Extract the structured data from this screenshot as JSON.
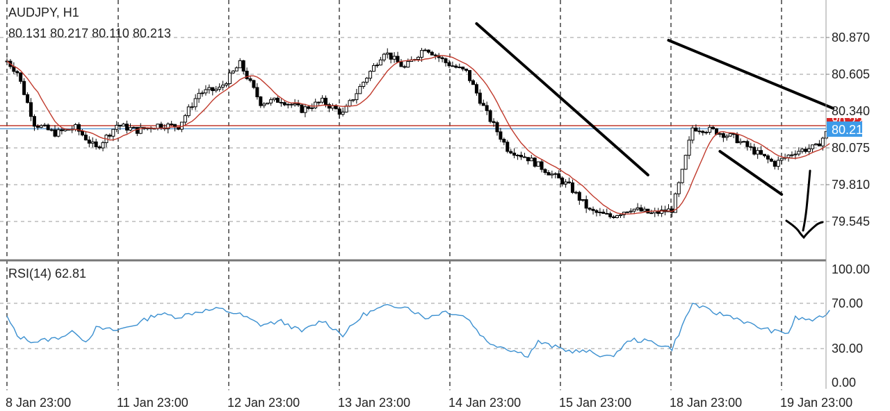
{
  "main_panel": {
    "symbol_label": "AUDJPY, H1",
    "ohlc_label": "80.131 80.217 80.110 80.213",
    "price_ticks": [
      "80.870",
      "80.605",
      "80.340",
      "80.075",
      "79.810",
      "79.545"
    ],
    "current_price_label": "80.213",
    "hidden_tag_label": "80.2??"
  },
  "rsi_panel": {
    "label": "RSI(14) 62.81",
    "ticks": [
      "100.00",
      "70.00",
      "30.00",
      "0.00"
    ]
  },
  "time_axis": {
    "labels": [
      "8 Jan 23:00",
      "11 Jan 23:00",
      "12 Jan 23:00",
      "13 Jan 23:00",
      "14 Jan 23:00",
      "15 Jan 23:00",
      "18 Jan 23:00",
      "19 Jan 23:00"
    ]
  },
  "colors": {
    "candle": "#000000",
    "moving_average": "#c0392b",
    "rsi_line": "#3a8fd0",
    "current_price_line": "#5b9bd5",
    "resistance_line": "#c0392b",
    "price_tag_bg": "#3d9be9",
    "hidden_tag_bg": "#d62728",
    "drawings": "#000000"
  },
  "chart_data": [
    {
      "type": "candlestick",
      "title": "AUDJPY, H1",
      "x_labels": [
        "8 Jan 23:00",
        "11 Jan 23:00",
        "12 Jan 23:00",
        "13 Jan 23:00",
        "14 Jan 23:00",
        "15 Jan 23:00",
        "18 Jan 23:00",
        "19 Jan 23:00"
      ],
      "ylim": [
        79.39,
        81.05
      ],
      "y_ticks": [
        80.87,
        80.605,
        80.34,
        80.075,
        79.81,
        79.545
      ],
      "horizontal_lines": [
        {
          "value": 80.235,
          "color": "#c0392b"
        },
        {
          "value": 80.213,
          "color": "#5b9bd5"
        }
      ],
      "close_path": [
        [
          0,
          80.7
        ],
        [
          3,
          80.62
        ],
        [
          8,
          80.25
        ],
        [
          14,
          80.18
        ],
        [
          20,
          80.22
        ],
        [
          26,
          80.07
        ],
        [
          32,
          80.24
        ],
        [
          38,
          80.2
        ],
        [
          44,
          80.24
        ],
        [
          50,
          80.23
        ],
        [
          56,
          80.47
        ],
        [
          62,
          80.5
        ],
        [
          68,
          80.68
        ],
        [
          74,
          80.4
        ],
        [
          80,
          80.42
        ],
        [
          86,
          80.35
        ],
        [
          92,
          80.41
        ],
        [
          98,
          80.32
        ],
        [
          104,
          80.55
        ],
        [
          110,
          80.77
        ],
        [
          116,
          80.65
        ],
        [
          122,
          80.8
        ],
        [
          128,
          80.69
        ],
        [
          134,
          80.62
        ],
        [
          140,
          80.32
        ],
        [
          146,
          80.07
        ],
        [
          152,
          80.0
        ],
        [
          158,
          79.9
        ],
        [
          164,
          79.8
        ],
        [
          170,
          79.62
        ],
        [
          176,
          79.58
        ],
        [
          182,
          79.64
        ],
        [
          188,
          79.6
        ],
        [
          194,
          79.63
        ],
        [
          197,
          79.9
        ],
        [
          200,
          80.22
        ],
        [
          206,
          80.2
        ],
        [
          212,
          80.15
        ],
        [
          218,
          80.05
        ],
        [
          224,
          79.96
        ],
        [
          230,
          80.05
        ],
        [
          236,
          80.08
        ],
        [
          240,
          80.213
        ]
      ],
      "moving_average": {
        "type": "line",
        "color": "#c0392b"
      },
      "annotations": [
        {
          "type": "trendline",
          "from": [
            137,
            80.97
          ],
          "to": [
            187,
            79.88
          ]
        },
        {
          "type": "trendline",
          "from": [
            193,
            80.85
          ],
          "to": [
            241,
            80.36
          ]
        },
        {
          "type": "trendline",
          "from": [
            208,
            80.05
          ],
          "to": [
            226,
            79.74
          ]
        },
        {
          "type": "freehand",
          "description": "hand-drawn check mark"
        }
      ]
    },
    {
      "type": "line",
      "title": "RSI(14) 62.81",
      "ylim": [
        0,
        100
      ],
      "y_ticks": [
        100,
        70,
        30,
        0
      ],
      "reference_lines": [
        70,
        30
      ],
      "series": [
        {
          "name": "RSI(14)",
          "points": [
            [
              0,
              58
            ],
            [
              3,
              41
            ],
            [
              8,
              36
            ],
            [
              14,
              39
            ],
            [
              20,
              45
            ],
            [
              23,
              36
            ],
            [
              26,
              48
            ],
            [
              32,
              46
            ],
            [
              38,
              52
            ],
            [
              44,
              61
            ],
            [
              50,
              58
            ],
            [
              56,
              63
            ],
            [
              62,
              65
            ],
            [
              68,
              60
            ],
            [
              74,
              51
            ],
            [
              80,
              54
            ],
            [
              86,
              45
            ],
            [
              92,
              55
            ],
            [
              98,
              42
            ],
            [
              104,
              60
            ],
            [
              110,
              67
            ],
            [
              116,
              68
            ],
            [
              122,
              57
            ],
            [
              128,
              63
            ],
            [
              134,
              58
            ],
            [
              140,
              36
            ],
            [
              146,
              30
            ],
            [
              152,
              24
            ],
            [
              155,
              36
            ],
            [
              158,
              33
            ],
            [
              164,
              28
            ],
            [
              170,
              27
            ],
            [
              176,
              22
            ],
            [
              182,
              38
            ],
            [
              188,
              36
            ],
            [
              194,
              30
            ],
            [
              197,
              50
            ],
            [
              200,
              70
            ],
            [
              206,
              62
            ],
            [
              212,
              58
            ],
            [
              218,
              50
            ],
            [
              224,
              45
            ],
            [
              228,
              44
            ],
            [
              230,
              57
            ],
            [
              236,
              55
            ],
            [
              240,
              62.81
            ]
          ]
        }
      ]
    }
  ]
}
